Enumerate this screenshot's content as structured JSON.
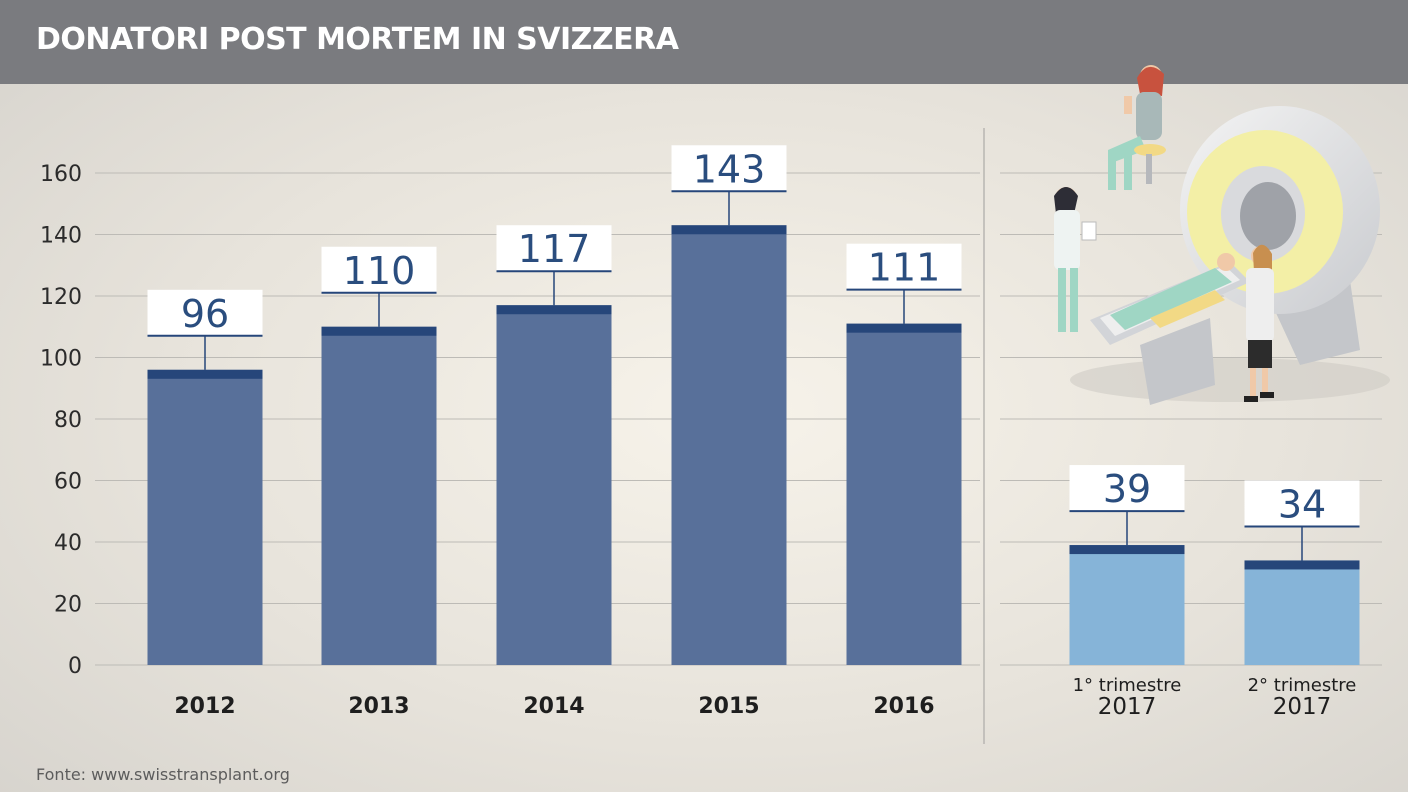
{
  "title": "DONATORI POST MORTEM IN SVIZZERA",
  "source": "Fonte: www.swisstransplant.org",
  "colors": {
    "header_bg": "#7a7b7f",
    "bar_annual": "#58709a",
    "bar_quarter": "#86b4d8",
    "bar_cap": "#26467a",
    "label_text": "#2a4d7e"
  },
  "illustration": "mri-scanner-medical-staff",
  "chart_data": {
    "type": "bar",
    "ylim": [
      0,
      160
    ],
    "yticks": [
      "0",
      "20",
      "40",
      "60",
      "80",
      "100",
      "120",
      "140",
      "160"
    ],
    "grid": true,
    "categories": [
      "2012",
      "2013",
      "2014",
      "2015",
      "2016",
      "1° trimestre 2017",
      "2° trimestre 2017"
    ],
    "values": [
      96,
      110,
      117,
      143,
      111,
      39,
      34
    ],
    "value_labels": [
      "96",
      "110",
      "117",
      "143",
      "111",
      "39",
      "34"
    ],
    "category_labels": [
      [
        "2012"
      ],
      [
        "2013"
      ],
      [
        "2014"
      ],
      [
        "2015"
      ],
      [
        "2016"
      ],
      [
        "1° trimestre",
        "2017"
      ],
      [
        "2° trimestre",
        "2017"
      ]
    ],
    "groups": [
      "annual",
      "annual",
      "annual",
      "annual",
      "annual",
      "quarter",
      "quarter"
    ]
  }
}
